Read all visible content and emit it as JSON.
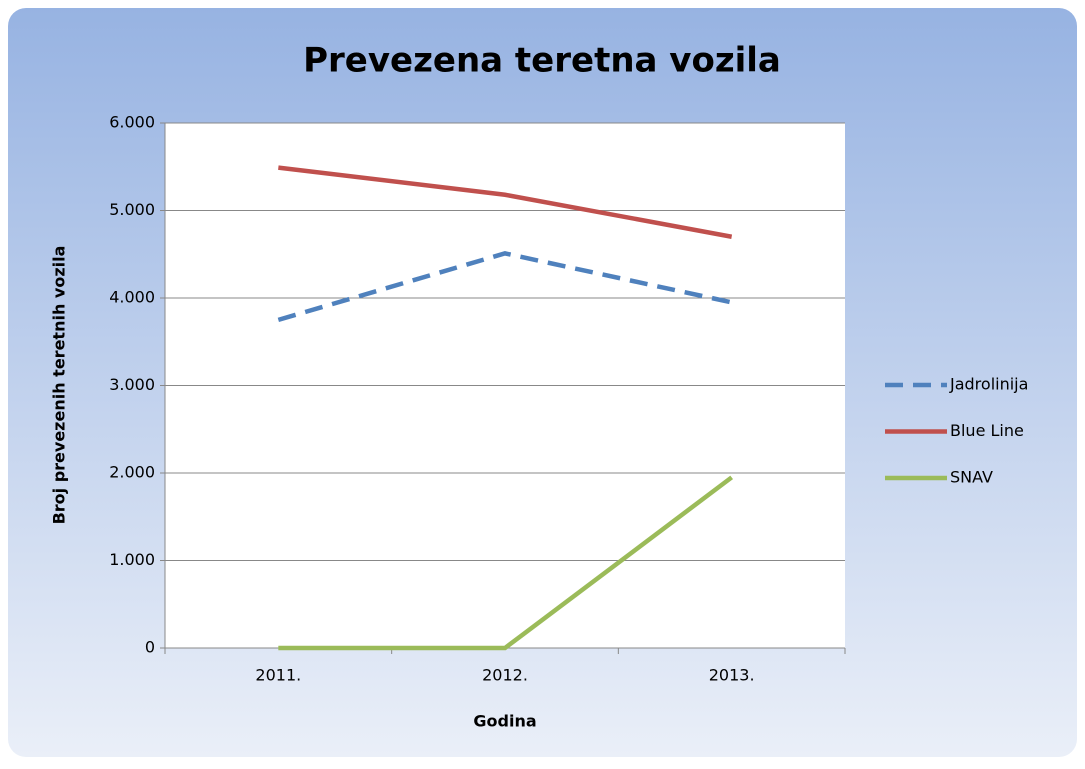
{
  "chart_data": {
    "type": "line",
    "title": "Prevezena teretna vozila",
    "x_label": "Godina",
    "y_label": "Broj prevezenih teretnih vozila",
    "categories": [
      "2011.",
      "2012.",
      "2013."
    ],
    "series": [
      {
        "name": "Jadrolinija",
        "color": "#4f81bd",
        "line_style": "dashed",
        "values": [
          3750,
          4510,
          3950
        ]
      },
      {
        "name": "Blue Line",
        "color": "#c0504d",
        "line_style": "solid",
        "values": [
          5490,
          5180,
          4700
        ]
      },
      {
        "name": "SNAV",
        "color": "#9bbb59",
        "line_style": "solid",
        "values": [
          0,
          0,
          1950
        ]
      }
    ],
    "ylim": [
      0,
      6000
    ],
    "yticks": [
      0,
      {
        "value": 1000,
        "label": "1.000"
      },
      {
        "value": 2000,
        "label": "2.000"
      },
      {
        "value": 3000,
        "label": "3.000"
      },
      {
        "value": 4000,
        "label": "4.000"
      },
      {
        "value": 5000,
        "label": "5.000"
      },
      {
        "value": 6000,
        "label": "6.000"
      }
    ],
    "grid": true,
    "legend": "right"
  }
}
